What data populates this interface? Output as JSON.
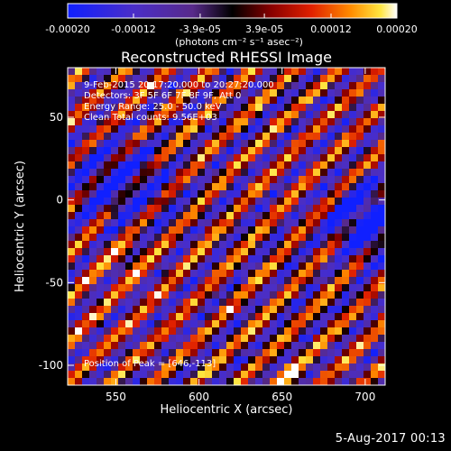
{
  "chart_data": {
    "type": "heatmap",
    "title": "Reconstructed RHESSI Image",
    "xlabel": "Heliocentric X (arcsec)",
    "ylabel": "Heliocentric Y (arcsec)",
    "xlim": [
      521,
      712
    ],
    "ylim": [
      -112,
      80
    ],
    "xticks": [
      550,
      600,
      650,
      700
    ],
    "yticks": [
      -100,
      -50,
      0,
      50
    ],
    "colorbar": {
      "ticks": [
        -0.0002,
        -0.00012,
        -3.9e-05,
        3.9e-05,
        0.00012,
        0.0002
      ],
      "tick_labels": [
        "-0.00020",
        "-0.00012",
        "-3.9e-05",
        "3.9e-05",
        "0.00012",
        "0.00020"
      ],
      "units": "(photons cm⁻² s⁻¹ asec⁻²)",
      "range": [
        -0.0002,
        0.0002
      ]
    },
    "annotations": [
      "9-Feb-2015 20:17:20.000 to 20:27:20.000",
      "Detectors: 3F 5F 6F 7F 8F 9F, Att 0",
      "Energy Range: 25.0 - 50.0 keV",
      "Clean     Total counts: 9.56E+03",
      "Position of Peak = [646,-113]"
    ],
    "peak_position": [
      646,
      -113
    ],
    "grid": false
  },
  "footer": {
    "date": "5-Aug-2017 00:13"
  }
}
